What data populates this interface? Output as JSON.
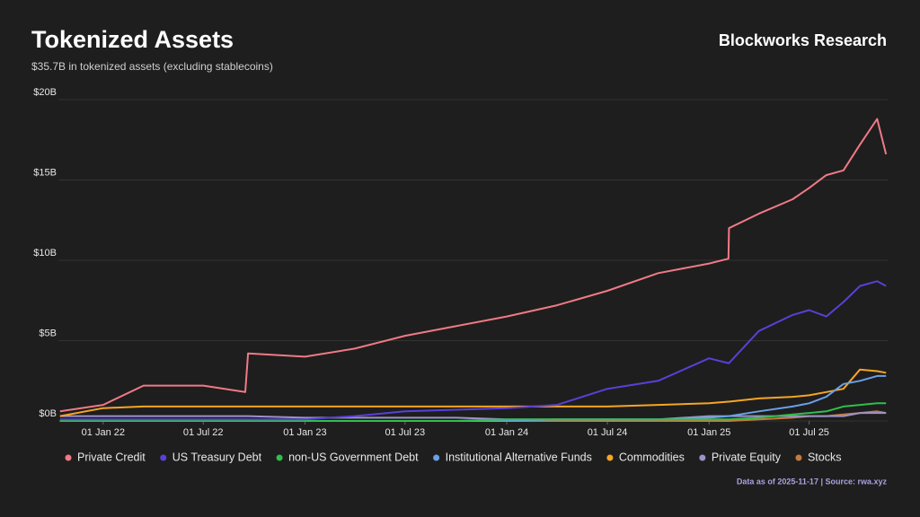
{
  "header": {
    "brand": "Blockworks Research"
  },
  "chart_data": {
    "type": "line",
    "title": "Tokenized Assets",
    "subtitle": "$35.7B in tokenized assets (excluding stablecoins)",
    "x": [
      "2021-10-15",
      "2022-01-01",
      "2022-03-15",
      "2022-07-01",
      "2022-09-15",
      "2022-09-20",
      "2023-01-01",
      "2023-04-01",
      "2023-07-01",
      "2023-10-01",
      "2024-01-01",
      "2024-04-01",
      "2024-07-01",
      "2024-10-01",
      "2025-01-01",
      "2025-02-05",
      "2025-02-06",
      "2025-04-01",
      "2025-06-01",
      "2025-07-01",
      "2025-08-01",
      "2025-09-01",
      "2025-10-01",
      "2025-11-01",
      "2025-11-17"
    ],
    "series": [
      {
        "name": "Private Credit",
        "color": "#f07a86",
        "values": [
          0.6,
          1.0,
          2.2,
          2.2,
          1.8,
          4.2,
          4.0,
          4.5,
          5.3,
          5.9,
          6.5,
          7.2,
          8.1,
          9.2,
          9.8,
          10.1,
          12.0,
          12.9,
          13.8,
          14.5,
          15.3,
          15.6,
          17.2,
          18.8,
          16.6
        ]
      },
      {
        "name": "US Treasury Debt",
        "color": "#5b3fd6",
        "values": [
          0.1,
          0.1,
          0.1,
          0.1,
          0.1,
          0.1,
          0.1,
          0.3,
          0.6,
          0.7,
          0.8,
          1.0,
          2.0,
          2.5,
          3.9,
          3.6,
          3.6,
          5.6,
          6.6,
          6.9,
          6.5,
          7.4,
          8.4,
          8.7,
          8.4
        ]
      },
      {
        "name": "non-US Government Debt",
        "color": "#2fbf4a",
        "values": [
          0,
          0,
          0,
          0,
          0,
          0,
          0,
          0,
          0,
          0,
          0.1,
          0.1,
          0.1,
          0.1,
          0.1,
          0.1,
          0.1,
          0.2,
          0.4,
          0.5,
          0.6,
          0.9,
          1.0,
          1.1,
          1.1
        ]
      },
      {
        "name": "Institutional Alternative Funds",
        "color": "#6aa0e8",
        "values": [
          0,
          0,
          0,
          0,
          0,
          0,
          0,
          0,
          0,
          0,
          0,
          0.1,
          0.1,
          0.1,
          0.2,
          0.3,
          0.3,
          0.6,
          0.9,
          1.1,
          1.5,
          2.3,
          2.5,
          2.8,
          2.8
        ]
      },
      {
        "name": "Commodities",
        "color": "#f5a623",
        "values": [
          0.3,
          0.8,
          0.9,
          0.9,
          0.9,
          0.9,
          0.9,
          0.9,
          0.9,
          0.9,
          0.9,
          0.9,
          0.9,
          1.0,
          1.1,
          1.2,
          1.2,
          1.4,
          1.5,
          1.6,
          1.8,
          2.0,
          3.2,
          3.1,
          3.0
        ]
      },
      {
        "name": "Private Equity",
        "color": "#9b93c9",
        "values": [
          0.3,
          0.3,
          0.3,
          0.3,
          0.3,
          0.3,
          0.2,
          0.2,
          0.2,
          0.2,
          0.1,
          0.1,
          0.1,
          0.1,
          0.3,
          0.3,
          0.3,
          0.3,
          0.3,
          0.3,
          0.3,
          0.3,
          0.5,
          0.5,
          0.5
        ]
      },
      {
        "name": "Stocks",
        "color": "#c47a3f",
        "values": [
          0,
          0,
          0,
          0,
          0,
          0,
          0,
          0,
          0,
          0,
          0,
          0,
          0,
          0,
          0,
          0,
          0,
          0.1,
          0.2,
          0.3,
          0.3,
          0.4,
          0.5,
          0.6,
          0.5
        ]
      }
    ],
    "xlim": [
      "2021-10-12",
      "2025-11-20"
    ],
    "xticks": [
      {
        "value": "2022-01-01",
        "label": "01 Jan 22"
      },
      {
        "value": "2022-07-01",
        "label": "01 Jul 22"
      },
      {
        "value": "2023-01-01",
        "label": "01 Jan 23"
      },
      {
        "value": "2023-07-01",
        "label": "01 Jul 23"
      },
      {
        "value": "2024-01-01",
        "label": "01 Jan 24"
      },
      {
        "value": "2024-07-01",
        "label": "01 Jul 24"
      },
      {
        "value": "2025-01-01",
        "label": "01 Jan 25"
      },
      {
        "value": "2025-07-01",
        "label": "01 Jul 25"
      }
    ],
    "ylim": [
      0,
      20
    ],
    "yticks": [
      {
        "value": 0,
        "label": "$0B"
      },
      {
        "value": 5,
        "label": "$5B"
      },
      {
        "value": 10,
        "label": "$10B"
      },
      {
        "value": 15,
        "label": "$15B"
      },
      {
        "value": 20,
        "label": "$20B"
      }
    ],
    "grid": true,
    "footnote": "Data as of 2025-11-17 | Source: rwa.xyz"
  }
}
